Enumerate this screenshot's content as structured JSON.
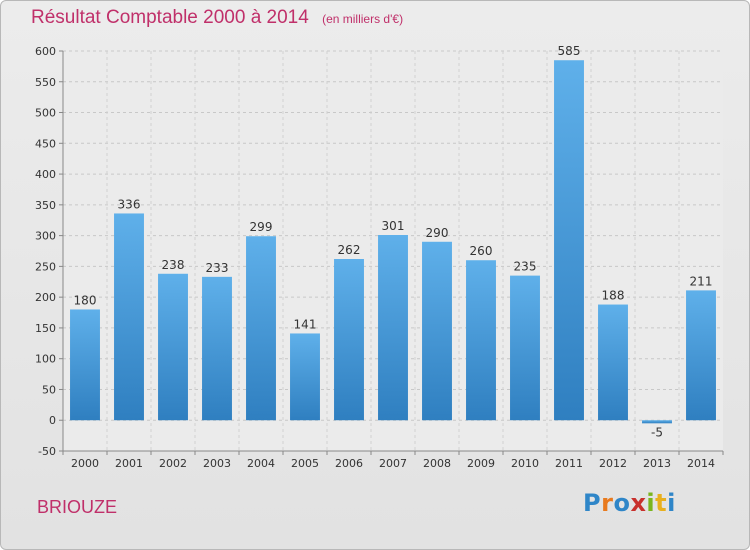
{
  "header": {
    "title": "Résultat Comptable 2000 à 2014",
    "subtitle": "(en milliers d'€)"
  },
  "footer": {
    "town": "BRIOUZE",
    "logo_letters": [
      {
        "ch": "P",
        "color": "#2f86c8"
      },
      {
        "ch": "r",
        "color": "#e87a1e"
      },
      {
        "ch": "o",
        "color": "#2f86c8"
      },
      {
        "ch": "x",
        "color": "#c8302c"
      },
      {
        "ch": "i",
        "color": "#7ab51d"
      },
      {
        "ch": "t",
        "color": "#e8b01e"
      },
      {
        "ch": "i",
        "color": "#2f86c8"
      }
    ]
  },
  "chart_data": {
    "type": "bar",
    "title": "Résultat Comptable 2000 à 2014",
    "subtitle": "(en milliers d'€)",
    "categories": [
      "2000",
      "2001",
      "2002",
      "2003",
      "2004",
      "2005",
      "2006",
      "2007",
      "2008",
      "2009",
      "2010",
      "2011",
      "2012",
      "2013",
      "2014"
    ],
    "values": [
      180,
      336,
      238,
      233,
      299,
      141,
      262,
      301,
      290,
      260,
      235,
      585,
      188,
      -5,
      211
    ],
    "ylim": [
      -50,
      600
    ],
    "yticks": [
      -50,
      0,
      50,
      100,
      150,
      200,
      250,
      300,
      350,
      400,
      450,
      500,
      550,
      600
    ],
    "grid": true,
    "bar_color": "#3d95d6"
  }
}
